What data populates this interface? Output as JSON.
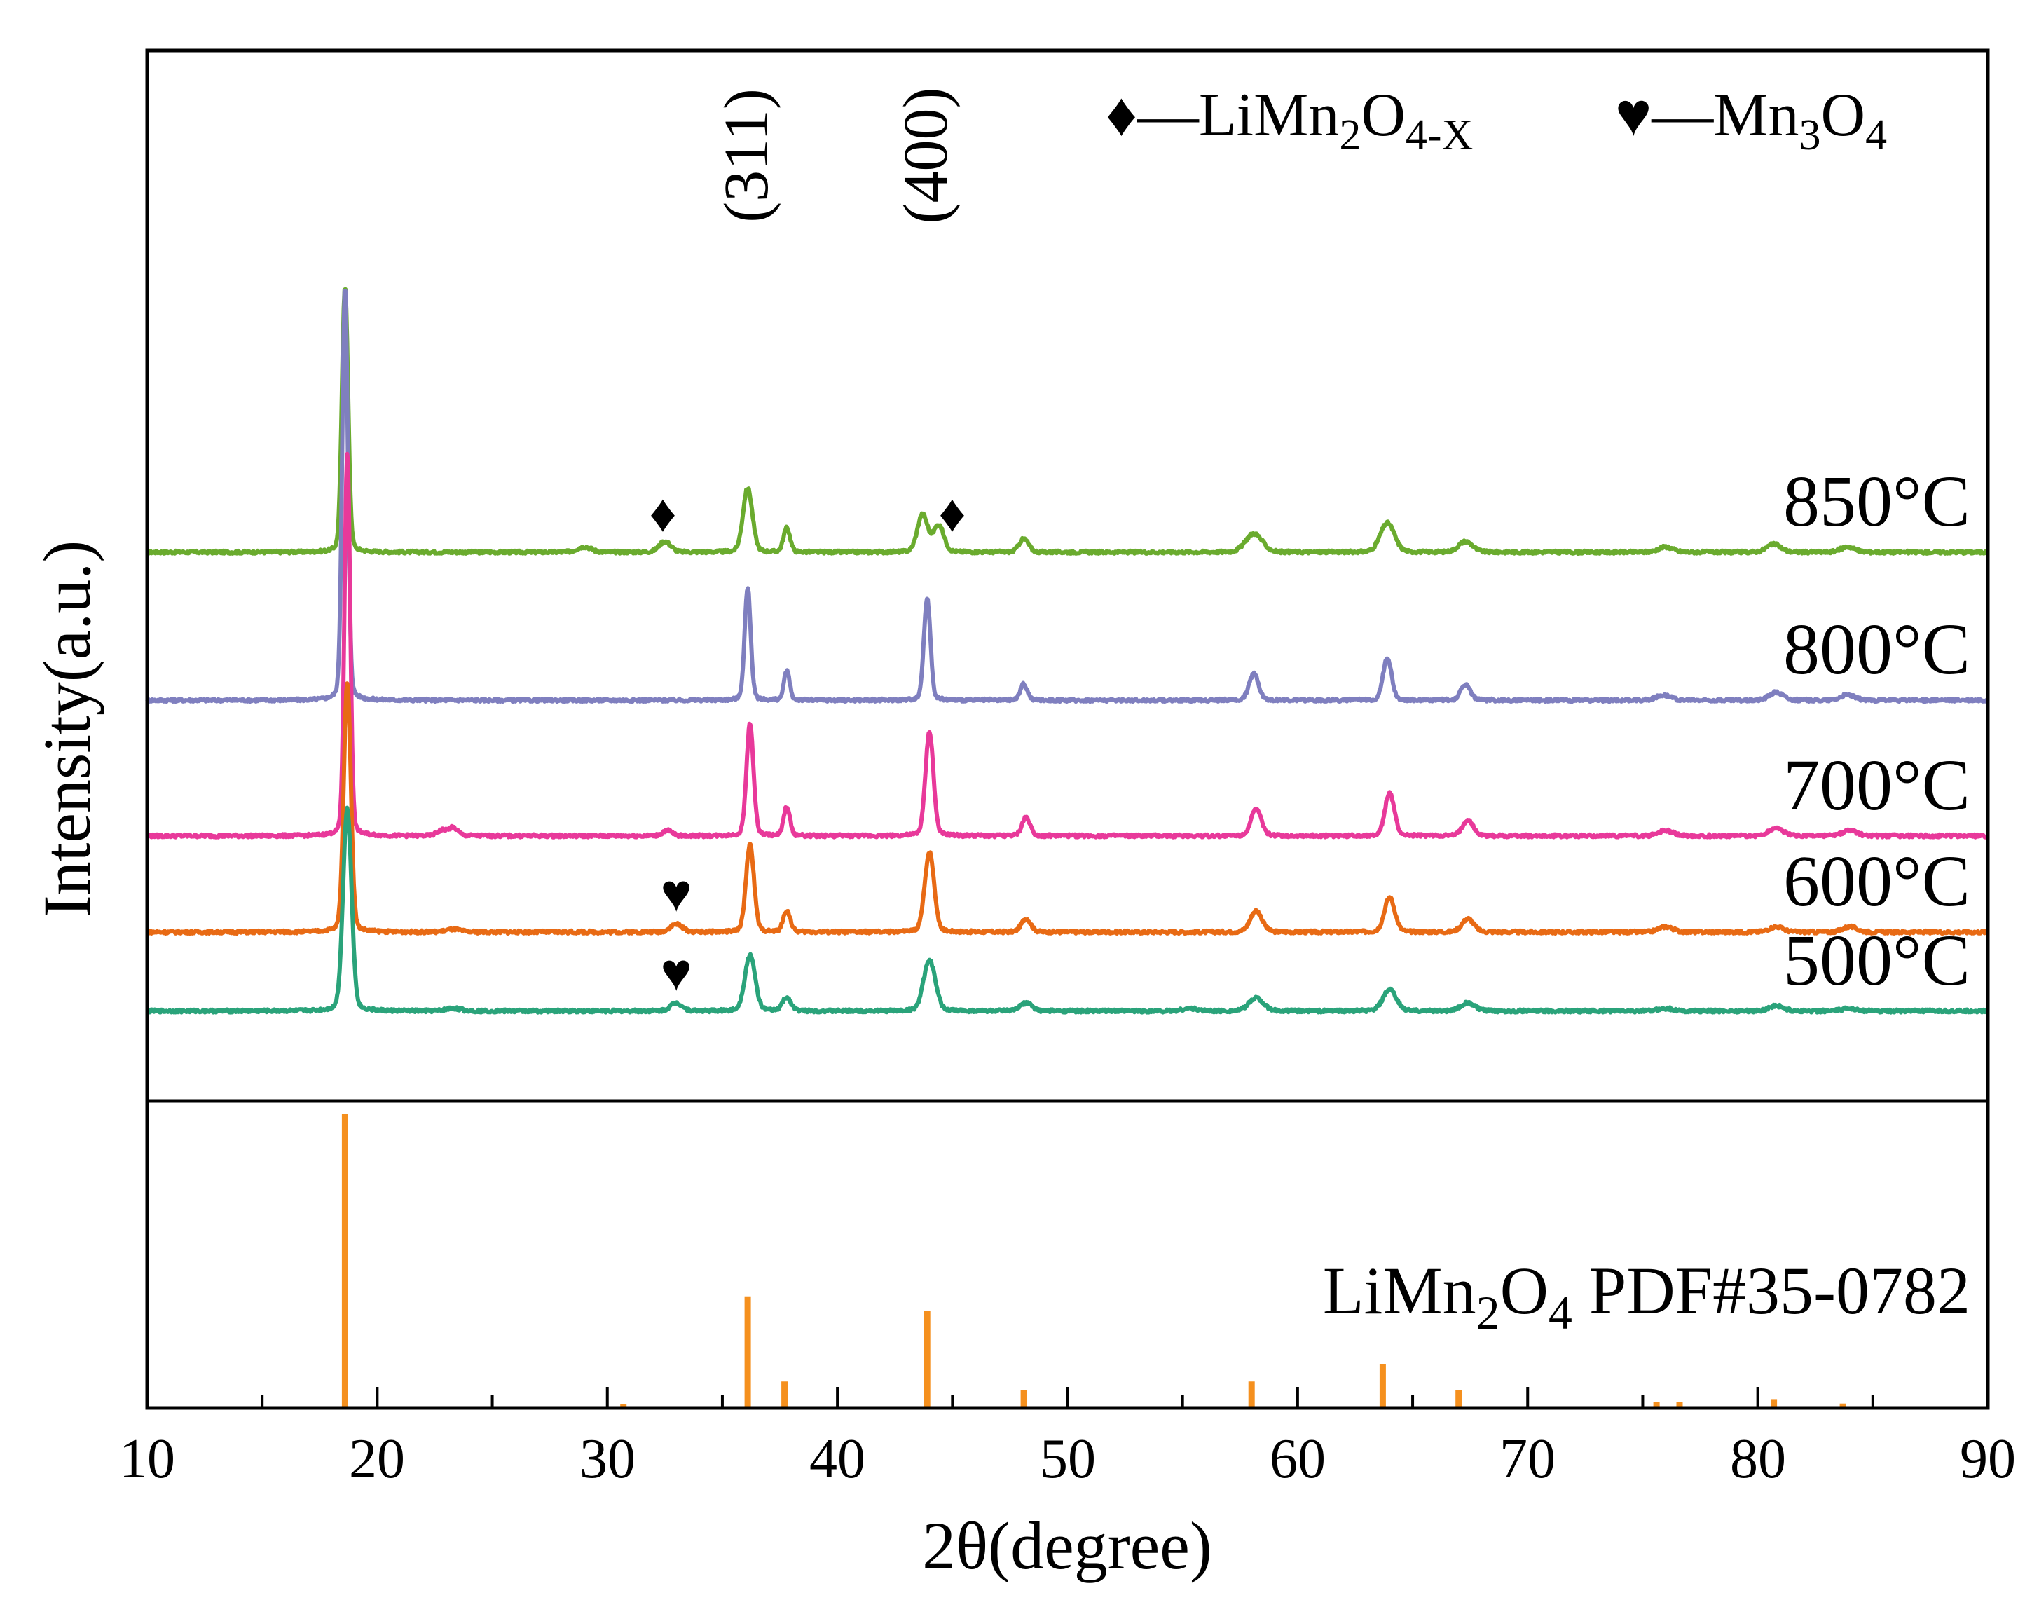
{
  "chart_data": {
    "type": "line",
    "title": "",
    "xlabel": "2θ(degree)",
    "ylabel": "Intensity(a.u.)",
    "xlim": [
      10,
      90
    ],
    "xticks": [
      10,
      20,
      30,
      40,
      50,
      60,
      70,
      80,
      90
    ],
    "tick_labels": [
      "10",
      "20",
      "30",
      "40",
      "50",
      "60",
      "70",
      "80",
      "90"
    ],
    "legend": {
      "spinel_symbol": "♦",
      "spinel_prefix": "—LiMn",
      "spinel_sub1": "2",
      "spinel_mid": "O",
      "spinel_sub2": "4-X",
      "mn3o4_symbol": "♥",
      "mn3o4_prefix": "—Mn",
      "mn3o4_sub1": "3",
      "mn3o4_mid": "O",
      "mn3o4_sub2": "4"
    },
    "peak_labels": [
      {
        "text": "(311)",
        "x": 36.1
      },
      {
        "text": "(400)",
        "x": 43.9
      }
    ],
    "series": [
      {
        "name": "850°C",
        "color": "#6aab2e",
        "baseline_rel": 1.54,
        "peaks": [
          {
            "x": 18.6,
            "h": 1.0,
            "w": 0.13
          },
          {
            "x": 29.0,
            "h": 0.02,
            "w": 0.3
          },
          {
            "x": 32.5,
            "h": 0.04,
            "w": 0.25
          },
          {
            "x": 36.1,
            "h": 0.24,
            "w": 0.2
          },
          {
            "x": 37.8,
            "h": 0.09,
            "w": 0.14
          },
          {
            "x": 43.7,
            "h": 0.14,
            "w": 0.22
          },
          {
            "x": 44.4,
            "h": 0.1,
            "w": 0.22
          },
          {
            "x": 48.1,
            "h": 0.05,
            "w": 0.2
          },
          {
            "x": 58.1,
            "h": 0.07,
            "w": 0.35
          },
          {
            "x": 63.9,
            "h": 0.11,
            "w": 0.3
          },
          {
            "x": 67.3,
            "h": 0.04,
            "w": 0.3
          },
          {
            "x": 76.0,
            "h": 0.02,
            "w": 0.3
          },
          {
            "x": 80.7,
            "h": 0.03,
            "w": 0.3
          },
          {
            "x": 83.9,
            "h": 0.02,
            "w": 0.3
          }
        ]
      },
      {
        "name": "800°C",
        "color": "#7f7fbf",
        "baseline_rel": 0.94,
        "peaks": [
          {
            "x": 18.6,
            "h": 1.55,
            "w": 0.12
          },
          {
            "x": 36.1,
            "h": 0.42,
            "w": 0.13
          },
          {
            "x": 37.8,
            "h": 0.11,
            "w": 0.12
          },
          {
            "x": 43.9,
            "h": 0.38,
            "w": 0.14
          },
          {
            "x": 48.1,
            "h": 0.06,
            "w": 0.15
          },
          {
            "x": 58.1,
            "h": 0.1,
            "w": 0.2
          },
          {
            "x": 63.9,
            "h": 0.16,
            "w": 0.18
          },
          {
            "x": 67.3,
            "h": 0.06,
            "w": 0.2
          },
          {
            "x": 75.9,
            "h": 0.02,
            "w": 0.3
          },
          {
            "x": 80.8,
            "h": 0.03,
            "w": 0.3
          },
          {
            "x": 83.9,
            "h": 0.02,
            "w": 0.3
          }
        ]
      },
      {
        "name": "700°C",
        "color": "#e8399a",
        "baseline_rel": 0.39,
        "peaks": [
          {
            "x": 18.7,
            "h": 1.44,
            "w": 0.12
          },
          {
            "x": 22.8,
            "h": 0.02,
            "w": 0.2
          },
          {
            "x": 23.3,
            "h": 0.03,
            "w": 0.2
          },
          {
            "x": 32.6,
            "h": 0.02,
            "w": 0.2
          },
          {
            "x": 36.2,
            "h": 0.42,
            "w": 0.15
          },
          {
            "x": 37.8,
            "h": 0.11,
            "w": 0.13
          },
          {
            "x": 44.0,
            "h": 0.39,
            "w": 0.17
          },
          {
            "x": 48.2,
            "h": 0.07,
            "w": 0.17
          },
          {
            "x": 58.2,
            "h": 0.1,
            "w": 0.22
          },
          {
            "x": 64.0,
            "h": 0.16,
            "w": 0.2
          },
          {
            "x": 67.4,
            "h": 0.06,
            "w": 0.22
          },
          {
            "x": 76.0,
            "h": 0.02,
            "w": 0.3
          },
          {
            "x": 80.8,
            "h": 0.03,
            "w": 0.3
          },
          {
            "x": 84.0,
            "h": 0.02,
            "w": 0.3
          }
        ]
      },
      {
        "name": "600°C",
        "color": "#e86a14",
        "baseline_rel": 0.0,
        "peaks": [
          {
            "x": 18.7,
            "h": 0.94,
            "w": 0.15
          },
          {
            "x": 23.3,
            "h": 0.01,
            "w": 0.3
          },
          {
            "x": 33.0,
            "h": 0.03,
            "w": 0.25
          },
          {
            "x": 36.2,
            "h": 0.33,
            "w": 0.17
          },
          {
            "x": 37.8,
            "h": 0.08,
            "w": 0.15
          },
          {
            "x": 44.0,
            "h": 0.3,
            "w": 0.2
          },
          {
            "x": 48.2,
            "h": 0.05,
            "w": 0.2
          },
          {
            "x": 58.2,
            "h": 0.08,
            "w": 0.25
          },
          {
            "x": 64.0,
            "h": 0.13,
            "w": 0.22
          },
          {
            "x": 67.4,
            "h": 0.05,
            "w": 0.25
          },
          {
            "x": 76.0,
            "h": 0.02,
            "w": 0.3
          },
          {
            "x": 80.8,
            "h": 0.02,
            "w": 0.3
          },
          {
            "x": 84.0,
            "h": 0.02,
            "w": 0.3
          }
        ]
      },
      {
        "name": "500°C",
        "color": "#2aa37a",
        "baseline_rel": -0.32,
        "peaks": [
          {
            "x": 18.7,
            "h": 0.76,
            "w": 0.18
          },
          {
            "x": 23.3,
            "h": 0.01,
            "w": 0.3
          },
          {
            "x": 33.0,
            "h": 0.03,
            "w": 0.25
          },
          {
            "x": 36.2,
            "h": 0.21,
            "w": 0.22
          },
          {
            "x": 37.8,
            "h": 0.05,
            "w": 0.18
          },
          {
            "x": 44.0,
            "h": 0.19,
            "w": 0.25
          },
          {
            "x": 48.2,
            "h": 0.03,
            "w": 0.25
          },
          {
            "x": 55.3,
            "h": 0.01,
            "w": 0.3
          },
          {
            "x": 58.2,
            "h": 0.05,
            "w": 0.3
          },
          {
            "x": 64.0,
            "h": 0.08,
            "w": 0.28
          },
          {
            "x": 67.4,
            "h": 0.03,
            "w": 0.3
          },
          {
            "x": 76.0,
            "h": 0.01,
            "w": 0.3
          },
          {
            "x": 80.8,
            "h": 0.02,
            "w": 0.3
          },
          {
            "x": 84.0,
            "h": 0.01,
            "w": 0.3
          }
        ]
      }
    ],
    "markers": [
      {
        "symbol": "♦",
        "x": 32.4,
        "series": "850°C",
        "phase": "LiMn2O4-X"
      },
      {
        "symbol": "♦",
        "x": 45.0,
        "series": "850°C",
        "phase": "LiMn2O4-X"
      },
      {
        "symbol": "♥",
        "x": 33.0,
        "series": "600°C",
        "phase": "Mn3O4"
      },
      {
        "symbol": "♥",
        "x": 33.0,
        "series": "500°C",
        "phase": "Mn3O4"
      }
    ],
    "reference": {
      "label": "LiMn",
      "label_sub1": "2",
      "label_mid": "O",
      "label_sub2": "4",
      "label_suffix": " PDF#35-0782",
      "color": "#f5901e",
      "lines": [
        {
          "x": 18.6,
          "i": 100
        },
        {
          "x": 30.7,
          "i": 1
        },
        {
          "x": 36.1,
          "i": 38
        },
        {
          "x": 37.7,
          "i": 9
        },
        {
          "x": 43.9,
          "i": 33
        },
        {
          "x": 48.1,
          "i": 6
        },
        {
          "x": 58.0,
          "i": 9
        },
        {
          "x": 63.7,
          "i": 15
        },
        {
          "x": 67.0,
          "i": 6
        },
        {
          "x": 75.6,
          "i": 2
        },
        {
          "x": 76.6,
          "i": 2
        },
        {
          "x": 80.7,
          "i": 3
        },
        {
          "x": 83.7,
          "i": 1.5
        }
      ]
    }
  }
}
